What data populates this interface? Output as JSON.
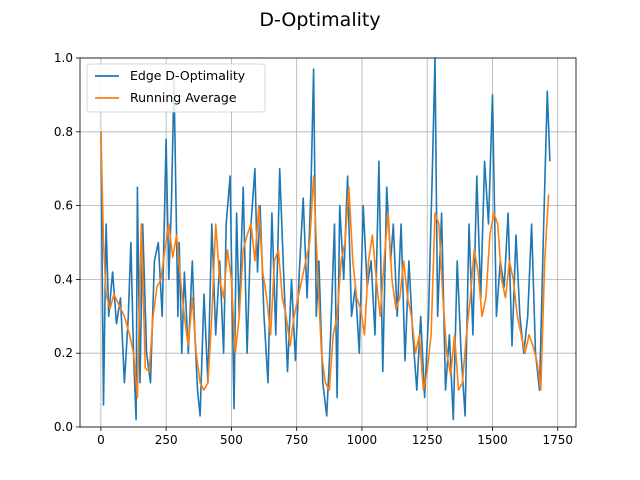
{
  "chart_data": {
    "type": "line",
    "title": "D-Optimality",
    "xlabel": "",
    "ylabel": "",
    "xlim": [
      -80,
      1820
    ],
    "ylim": [
      0,
      1.0
    ],
    "xticks": [
      0,
      250,
      500,
      750,
      1000,
      1250,
      1500,
      1750
    ],
    "yticks": [
      0.0,
      0.2,
      0.4,
      0.6,
      0.8,
      1.0
    ],
    "xtick_labels": [
      "0",
      "250",
      "500",
      "750",
      "1000",
      "1250",
      "1500",
      "1750"
    ],
    "ytick_labels": [
      "0.0",
      "0.2",
      "0.4",
      "0.6",
      "0.8",
      "1.0"
    ],
    "grid": true,
    "legend_position": "top-left",
    "series": [
      {
        "name": "Edge D-Optimality",
        "color": "#1f77b4",
        "x": [
          0,
          10,
          20,
          30,
          45,
          60,
          75,
          90,
          105,
          115,
          125,
          135,
          140,
          150,
          160,
          175,
          190,
          205,
          220,
          235,
          250,
          260,
          270,
          280,
          295,
          300,
          310,
          320,
          335,
          350,
          360,
          370,
          380,
          395,
          410,
          425,
          440,
          455,
          470,
          480,
          495,
          510,
          520,
          530,
          545,
          560,
          575,
          590,
          600,
          610,
          625,
          640,
          655,
          670,
          685,
          700,
          715,
          730,
          745,
          760,
          775,
          790,
          805,
          815,
          825,
          835,
          850,
          865,
          880,
          895,
          905,
          915,
          930,
          945,
          960,
          975,
          990,
          1005,
          1020,
          1035,
          1050,
          1065,
          1080,
          1095,
          1110,
          1120,
          1135,
          1150,
          1165,
          1180,
          1195,
          1210,
          1225,
          1240,
          1255,
          1270,
          1280,
          1290,
          1305,
          1320,
          1335,
          1350,
          1365,
          1380,
          1395,
          1410,
          1425,
          1440,
          1455,
          1470,
          1485,
          1500,
          1515,
          1530,
          1545,
          1560,
          1575,
          1590,
          1605,
          1620,
          1635,
          1650,
          1665,
          1680,
          1695,
          1710,
          1720
        ],
        "y": [
          0.8,
          0.06,
          0.55,
          0.3,
          0.42,
          0.28,
          0.35,
          0.12,
          0.3,
          0.5,
          0.2,
          0.02,
          0.65,
          0.12,
          0.55,
          0.2,
          0.12,
          0.45,
          0.5,
          0.3,
          0.78,
          0.4,
          0.6,
          0.94,
          0.3,
          0.5,
          0.2,
          0.42,
          0.2,
          0.45,
          0.25,
          0.1,
          0.03,
          0.36,
          0.12,
          0.55,
          0.25,
          0.45,
          0.2,
          0.55,
          0.68,
          0.05,
          0.58,
          0.3,
          0.65,
          0.2,
          0.55,
          0.7,
          0.42,
          0.6,
          0.3,
          0.12,
          0.58,
          0.25,
          0.7,
          0.42,
          0.15,
          0.4,
          0.18,
          0.42,
          0.62,
          0.35,
          0.65,
          0.97,
          0.3,
          0.45,
          0.12,
          0.03,
          0.25,
          0.55,
          0.08,
          0.6,
          0.4,
          0.68,
          0.3,
          0.38,
          0.2,
          0.6,
          0.38,
          0.45,
          0.25,
          0.72,
          0.15,
          0.65,
          0.45,
          0.55,
          0.3,
          0.55,
          0.18,
          0.45,
          0.25,
          0.1,
          0.3,
          0.08,
          0.3,
          0.7,
          1.0,
          0.3,
          0.58,
          0.1,
          0.25,
          0.02,
          0.45,
          0.2,
          0.03,
          0.55,
          0.25,
          0.68,
          0.35,
          0.72,
          0.55,
          0.9,
          0.3,
          0.45,
          0.38,
          0.58,
          0.22,
          0.52,
          0.3,
          0.2,
          0.3,
          0.55,
          0.2,
          0.1,
          0.52,
          0.91,
          0.72
        ]
      },
      {
        "name": "Running Average",
        "color": "#ff7f0e",
        "x": [
          0,
          10,
          20,
          35,
          50,
          70,
          90,
          110,
          125,
          140,
          155,
          170,
          185,
          200,
          215,
          230,
          245,
          260,
          275,
          290,
          305,
          320,
          335,
          350,
          365,
          380,
          395,
          410,
          425,
          440,
          455,
          470,
          485,
          500,
          515,
          530,
          545,
          560,
          575,
          590,
          605,
          620,
          635,
          650,
          665,
          680,
          695,
          710,
          725,
          740,
          755,
          770,
          785,
          800,
          815,
          830,
          845,
          860,
          875,
          890,
          905,
          920,
          935,
          950,
          965,
          980,
          995,
          1010,
          1025,
          1040,
          1055,
          1070,
          1085,
          1100,
          1115,
          1130,
          1145,
          1160,
          1175,
          1190,
          1205,
          1220,
          1235,
          1250,
          1265,
          1280,
          1295,
          1310,
          1325,
          1340,
          1355,
          1370,
          1385,
          1400,
          1415,
          1430,
          1445,
          1460,
          1475,
          1490,
          1505,
          1520,
          1535,
          1550,
          1565,
          1580,
          1595,
          1610,
          1625,
          1640,
          1655,
          1670,
          1685,
          1700,
          1715
        ],
        "y": [
          0.8,
          0.5,
          0.36,
          0.32,
          0.36,
          0.33,
          0.3,
          0.25,
          0.2,
          0.08,
          0.55,
          0.16,
          0.15,
          0.3,
          0.38,
          0.4,
          0.48,
          0.55,
          0.46,
          0.52,
          0.4,
          0.3,
          0.22,
          0.35,
          0.2,
          0.12,
          0.1,
          0.12,
          0.3,
          0.55,
          0.4,
          0.35,
          0.48,
          0.4,
          0.2,
          0.3,
          0.48,
          0.52,
          0.55,
          0.45,
          0.6,
          0.42,
          0.35,
          0.25,
          0.45,
          0.48,
          0.35,
          0.3,
          0.22,
          0.3,
          0.35,
          0.4,
          0.45,
          0.5,
          0.68,
          0.42,
          0.2,
          0.12,
          0.1,
          0.25,
          0.3,
          0.45,
          0.5,
          0.65,
          0.45,
          0.35,
          0.32,
          0.25,
          0.45,
          0.52,
          0.4,
          0.3,
          0.45,
          0.58,
          0.4,
          0.32,
          0.35,
          0.45,
          0.35,
          0.3,
          0.2,
          0.25,
          0.1,
          0.15,
          0.25,
          0.58,
          0.55,
          0.35,
          0.2,
          0.14,
          0.25,
          0.1,
          0.12,
          0.25,
          0.35,
          0.48,
          0.42,
          0.3,
          0.35,
          0.52,
          0.58,
          0.55,
          0.4,
          0.35,
          0.45,
          0.4,
          0.3,
          0.25,
          0.2,
          0.25,
          0.22,
          0.18,
          0.1,
          0.45,
          0.63
        ]
      }
    ]
  }
}
